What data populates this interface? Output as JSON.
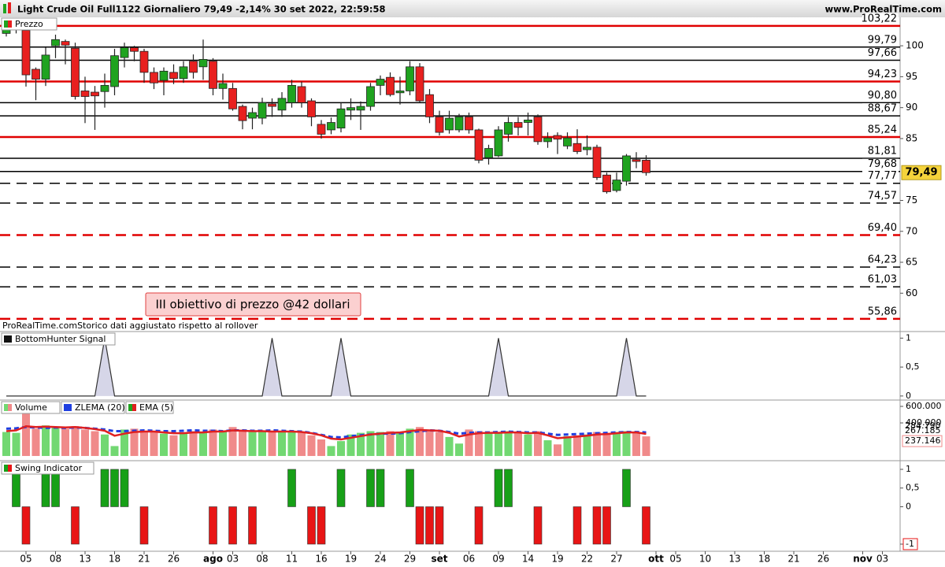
{
  "header": {
    "title": "Light Crude Oil Full1122 Giornaliero 79,49 -2,14% 30 set 2022, 22:59:58",
    "site": "www.ProRealTime.com"
  },
  "chart_data": [
    {
      "type": "candlestick",
      "legend": "Prezzo",
      "up_color": "#1fa31f",
      "down_color": "#e8201f",
      "open": [
        102,
        102.8,
        102.5,
        96.2,
        94.6,
        100,
        100.7,
        99.6,
        92.7,
        92.5,
        92.6,
        93.4,
        98.1,
        99.7,
        99.1,
        95.7,
        94.4,
        95.7,
        94.7,
        97.5,
        96.6,
        97.5,
        93.1,
        93.1,
        90.2,
        88.3,
        88.3,
        90.6,
        89.6,
        90.8,
        93.4,
        91.1,
        87.3,
        86.4,
        86.7,
        89.6,
        89.6,
        90.2,
        93.6,
        94.9,
        92.4,
        92.7,
        96.6,
        92.1,
        88.5,
        86.4,
        86.4,
        88.5,
        86.4,
        81.9,
        82.2,
        85.7,
        87.6,
        87.6,
        88.5,
        84.5,
        85.5,
        83.8,
        84.2,
        83.2,
        83.6,
        79.1,
        76.6,
        78.1,
        81.6,
        81.5,
        null,
        null,
        null,
        null,
        null,
        null,
        null,
        null,
        null,
        null,
        null,
        null,
        null,
        null,
        null,
        null,
        null,
        null,
        null,
        null,
        null,
        null,
        null,
        null,
        null
      ],
      "high": [
        104.5,
        104.5,
        104.5,
        96.5,
        99.7,
        101.8,
        101,
        100.5,
        95,
        93.5,
        95.5,
        99.5,
        100.5,
        100,
        99.5,
        96.5,
        96.5,
        97,
        97.5,
        98.6,
        101,
        98,
        95.5,
        94,
        90.5,
        90,
        91.6,
        91.5,
        92.5,
        94.5,
        94.2,
        91.5,
        88,
        88.4,
        90.8,
        91.5,
        91,
        94,
        95.2,
        95.7,
        95,
        97.5,
        97.2,
        93,
        89.5,
        89.5,
        89,
        89.2,
        86.6,
        84,
        87,
        88.5,
        88.5,
        89.2,
        88.9,
        86,
        86,
        86,
        86.5,
        85.5,
        84,
        79.5,
        79.5,
        82.5,
        82.8,
        82.3,
        null,
        null,
        null,
        null,
        null,
        null,
        null,
        null,
        null,
        null,
        null,
        null,
        null,
        null,
        null,
        null,
        null,
        null,
        null,
        null,
        null,
        null,
        null,
        null,
        null
      ],
      "low": [
        101.5,
        102,
        93.4,
        91.2,
        93.5,
        98,
        97,
        91.3,
        87.5,
        86.4,
        90,
        92,
        96.5,
        97.5,
        94,
        93,
        92,
        93.8,
        94,
        94.7,
        94.5,
        92,
        91.3,
        89.5,
        86.5,
        86.5,
        87.3,
        88.5,
        88.5,
        90,
        90,
        87,
        85,
        85.7,
        86,
        88,
        86.4,
        89.5,
        92,
        91.8,
        90.5,
        92,
        90.8,
        87.5,
        85.5,
        85.8,
        86,
        85.8,
        81,
        80.8,
        82,
        84.5,
        85.5,
        85.5,
        84,
        83.5,
        82.5,
        83.3,
        82.5,
        82.3,
        78.3,
        76.1,
        76.3,
        77.4,
        80.2,
        79,
        null,
        null,
        null,
        null,
        null,
        null,
        null,
        null,
        null,
        null,
        null,
        null,
        null,
        null,
        null,
        null,
        null,
        null,
        null,
        null,
        null,
        null,
        null,
        null,
        null
      ],
      "close": [
        102.8,
        103.4,
        95.3,
        94.6,
        98.5,
        101,
        100.1,
        91.8,
        91.8,
        91.9,
        93.6,
        98.4,
        99.7,
        99.1,
        95.7,
        94,
        95.9,
        94.7,
        96.6,
        95.7,
        97.8,
        93.1,
        93.9,
        89.8,
        87.9,
        89.2,
        90.8,
        90.2,
        91.5,
        93.6,
        90.8,
        88.5,
        85.7,
        87.6,
        89.8,
        90,
        90.2,
        93.4,
        94.6,
        92.1,
        92.7,
        96.6,
        91.1,
        88.5,
        86,
        88.3,
        88.5,
        86.4,
        81.5,
        83.4,
        86.4,
        87.6,
        86.8,
        88,
        84.5,
        85.1,
        84.9,
        85.1,
        82.9,
        83.6,
        78.7,
        76.4,
        78.3,
        82.2,
        81.3,
        79.49,
        null,
        null,
        null,
        null,
        null,
        null,
        null,
        null,
        null,
        null,
        null,
        null,
        null,
        null,
        null,
        null,
        null,
        null,
        null,
        null,
        null,
        null,
        null,
        null,
        null
      ],
      "ylim": [
        53.8,
        104.6
      ],
      "yticks": [
        100,
        95,
        90,
        85,
        75,
        70,
        65,
        60
      ],
      "last_label": "79,49",
      "levels": [
        {
          "value": 103.22,
          "label": "103,22",
          "color": "#e00000",
          "style": "solid"
        },
        {
          "value": 99.79,
          "label": "99,79",
          "color": "#000000",
          "style": "solid"
        },
        {
          "value": 97.66,
          "label": "97,66",
          "color": "#000000",
          "style": "solid"
        },
        {
          "value": 94.23,
          "label": "94,23",
          "color": "#e00000",
          "style": "solid"
        },
        {
          "value": 90.8,
          "label": "90,80",
          "color": "#000000",
          "style": "solid"
        },
        {
          "value": 88.67,
          "label": "88,67",
          "color": "#000000",
          "style": "solid"
        },
        {
          "value": 85.24,
          "label": "85,24",
          "color": "#e00000",
          "style": "solid"
        },
        {
          "value": 81.81,
          "label": "81,81",
          "color": "#000000",
          "style": "solid"
        },
        {
          "value": 79.68,
          "label": "79,68",
          "color": "#000000",
          "style": "solid"
        },
        {
          "value": 77.77,
          "label": "77,77",
          "color": "#000000",
          "style": "dashed"
        },
        {
          "value": 74.57,
          "label": "74,57",
          "color": "#000000",
          "style": "dashed"
        },
        {
          "value": 69.4,
          "label": "69,40",
          "color": "#e00000",
          "style": "dashed"
        },
        {
          "value": 64.23,
          "label": "64,23",
          "color": "#000000",
          "style": "dashed"
        },
        {
          "value": 61.03,
          "label": "61,03",
          "color": "#000000",
          "style": "dashed"
        },
        {
          "value": 55.86,
          "label": "55,86",
          "color": "#e00000",
          "style": "dashed"
        }
      ],
      "annotation": "III obiettivo di prezzo @42 dollari",
      "note": "ProRealTime.comStorico dati aggiustato rispetto al rollover"
    },
    {
      "type": "line",
      "legend": "BottomHunter Signal",
      "color": "#333333",
      "fill": "#d6d6e8",
      "values": [
        0,
        0,
        0,
        0,
        0,
        0,
        0,
        0,
        0,
        0,
        1,
        0,
        0,
        0,
        0,
        0,
        0,
        0,
        0,
        0,
        0,
        0,
        0,
        0,
        0,
        0,
        0,
        1,
        0,
        0,
        0,
        0,
        0,
        0,
        1,
        0,
        0,
        0,
        0,
        0,
        0,
        0,
        0,
        0,
        0,
        0,
        0,
        0,
        0,
        0,
        1,
        0,
        0,
        0,
        0,
        0,
        0,
        0,
        0,
        0,
        0,
        0,
        0,
        1,
        0,
        0,
        null,
        null,
        null,
        null,
        null,
        null,
        null,
        null,
        null,
        null,
        null,
        null,
        null,
        null,
        null,
        null,
        null,
        null,
        null,
        null,
        null,
        null,
        null,
        null,
        null
      ],
      "ylim": [
        -0.07,
        1.1
      ],
      "yticks": [
        1,
        {
          "value": 0.5,
          "label": "0,5"
        },
        0
      ]
    },
    {
      "type": "bar",
      "legend": "Volume",
      "up_color": "#72d872",
      "down_color": "#f08a8a",
      "values": [
        290000,
        280000,
        520000,
        330000,
        370000,
        350000,
        330000,
        360000,
        320000,
        300000,
        260000,
        120000,
        320000,
        330000,
        300000,
        290000,
        270000,
        250000,
        280000,
        300000,
        290000,
        320000,
        300000,
        350000,
        300000,
        290000,
        300000,
        290000,
        300000,
        290000,
        280000,
        250000,
        200000,
        120000,
        180000,
        260000,
        280000,
        300000,
        290000,
        300000,
        290000,
        330000,
        350000,
        300000,
        290000,
        230000,
        150000,
        320000,
        300000,
        290000,
        280000,
        300000,
        280000,
        260000,
        300000,
        190000,
        140000,
        240000,
        250000,
        260000,
        290000,
        280000,
        290000,
        300000,
        290000,
        237146,
        null,
        null,
        null,
        null,
        null,
        null,
        null,
        null,
        null,
        null,
        null,
        null,
        null,
        null,
        null,
        null,
        null,
        null,
        null,
        null,
        null,
        null,
        null,
        null,
        null
      ],
      "last_label": "237.146",
      "series": [
        {
          "name": "ZLEMA (20)",
          "color": "#1f3fe0",
          "last_label": "284.790",
          "values": [
            330000,
            335000,
            350000,
            345000,
            340000,
            345000,
            340000,
            345000,
            340000,
            330000,
            320000,
            300000,
            300000,
            305000,
            310000,
            305000,
            300000,
            300000,
            305000,
            310000,
            305000,
            305000,
            300000,
            310000,
            310000,
            305000,
            305000,
            310000,
            305000,
            300000,
            295000,
            280000,
            255000,
            230000,
            225000,
            240000,
            250000,
            260000,
            270000,
            270000,
            275000,
            290000,
            300000,
            310000,
            305000,
            290000,
            270000,
            280000,
            285000,
            285000,
            290000,
            295000,
            290000,
            285000,
            285000,
            270000,
            255000,
            260000,
            265000,
            270000,
            275000,
            280000,
            285000,
            290000,
            290000,
            284790,
            null,
            null,
            null,
            null,
            null,
            null,
            null,
            null,
            null,
            null,
            null,
            null,
            null,
            null,
            null,
            null,
            null,
            null,
            null,
            null,
            null,
            null,
            null,
            null,
            null
          ]
        },
        {
          "name": "EMA (5)",
          "color": "#e02020",
          "last_label": "267.185",
          "values": [
            300000,
            310000,
            360000,
            350000,
            355000,
            350000,
            345000,
            350000,
            340000,
            325000,
            305000,
            245000,
            270000,
            290000,
            295000,
            295000,
            285000,
            275000,
            275000,
            285000,
            285000,
            295000,
            295000,
            310000,
            305000,
            300000,
            300000,
            295000,
            295000,
            295000,
            290000,
            275000,
            250000,
            210000,
            200000,
            220000,
            240000,
            260000,
            270000,
            280000,
            285000,
            300000,
            315000,
            310000,
            305000,
            280000,
            235000,
            260000,
            275000,
            280000,
            280000,
            285000,
            285000,
            275000,
            280000,
            250000,
            215000,
            225000,
            235000,
            245000,
            260000,
            265000,
            275000,
            285000,
            285000,
            267185,
            null,
            null,
            null,
            null,
            null,
            null,
            null,
            null,
            null,
            null,
            null,
            null,
            null,
            null,
            null,
            null,
            null,
            null,
            null,
            null,
            null,
            null,
            null,
            null,
            null
          ]
        }
      ],
      "ylim": [
        -57000,
        667000
      ],
      "yticks": [
        {
          "value": 600000,
          "label": "600.000"
        },
        {
          "value": 400000,
          "label": "400.000"
        }
      ]
    },
    {
      "type": "bar",
      "legend": "Swing Indicator",
      "up_color": "#17a017",
      "down_color": "#e81515",
      "values": [
        0,
        1,
        -1,
        0,
        1,
        1,
        0,
        -1,
        0,
        0,
        1,
        1,
        1,
        0,
        -1,
        0,
        0,
        0,
        0,
        0,
        0,
        -1,
        0,
        -1,
        0,
        -1,
        0,
        0,
        0,
        1,
        0,
        -1,
        -1,
        0,
        1,
        0,
        0,
        1,
        1,
        0,
        0,
        1,
        -1,
        -1,
        -1,
        0,
        0,
        0,
        -1,
        0,
        1,
        1,
        0,
        0,
        -1,
        0,
        0,
        0,
        -1,
        0,
        -1,
        -1,
        0,
        1,
        0,
        -1,
        null,
        null,
        null,
        null,
        null,
        null,
        null,
        null,
        null,
        null,
        null,
        null,
        null,
        null,
        null,
        null,
        null,
        null,
        null,
        null,
        null,
        null,
        null,
        null,
        null
      ],
      "ylim": [
        -1.19,
        1.21
      ],
      "yticks": [
        1,
        {
          "value": 0.5,
          "label": "0,5"
        },
        0,
        -1
      ],
      "categories": [
        null,
        null,
        "05",
        null,
        null,
        "08",
        null,
        null,
        "13",
        null,
        null,
        "18",
        null,
        null,
        "21",
        null,
        null,
        "26",
        null,
        null,
        null,
        "ago",
        null,
        "03",
        null,
        null,
        "08",
        null,
        null,
        "11",
        null,
        null,
        "16",
        null,
        null,
        "19",
        null,
        null,
        "24",
        null,
        null,
        "29",
        null,
        null,
        "set",
        null,
        null,
        "06",
        null,
        null,
        "09",
        null,
        null,
        "14",
        null,
        null,
        "19",
        null,
        null,
        "22",
        null,
        null,
        "27",
        null,
        null,
        null,
        "ott",
        null,
        "05",
        null,
        null,
        "10",
        null,
        null,
        "13",
        null,
        null,
        "18",
        null,
        null,
        "21",
        null,
        null,
        "26",
        null,
        null,
        null,
        "nov",
        null,
        "03",
        null
      ]
    }
  ]
}
